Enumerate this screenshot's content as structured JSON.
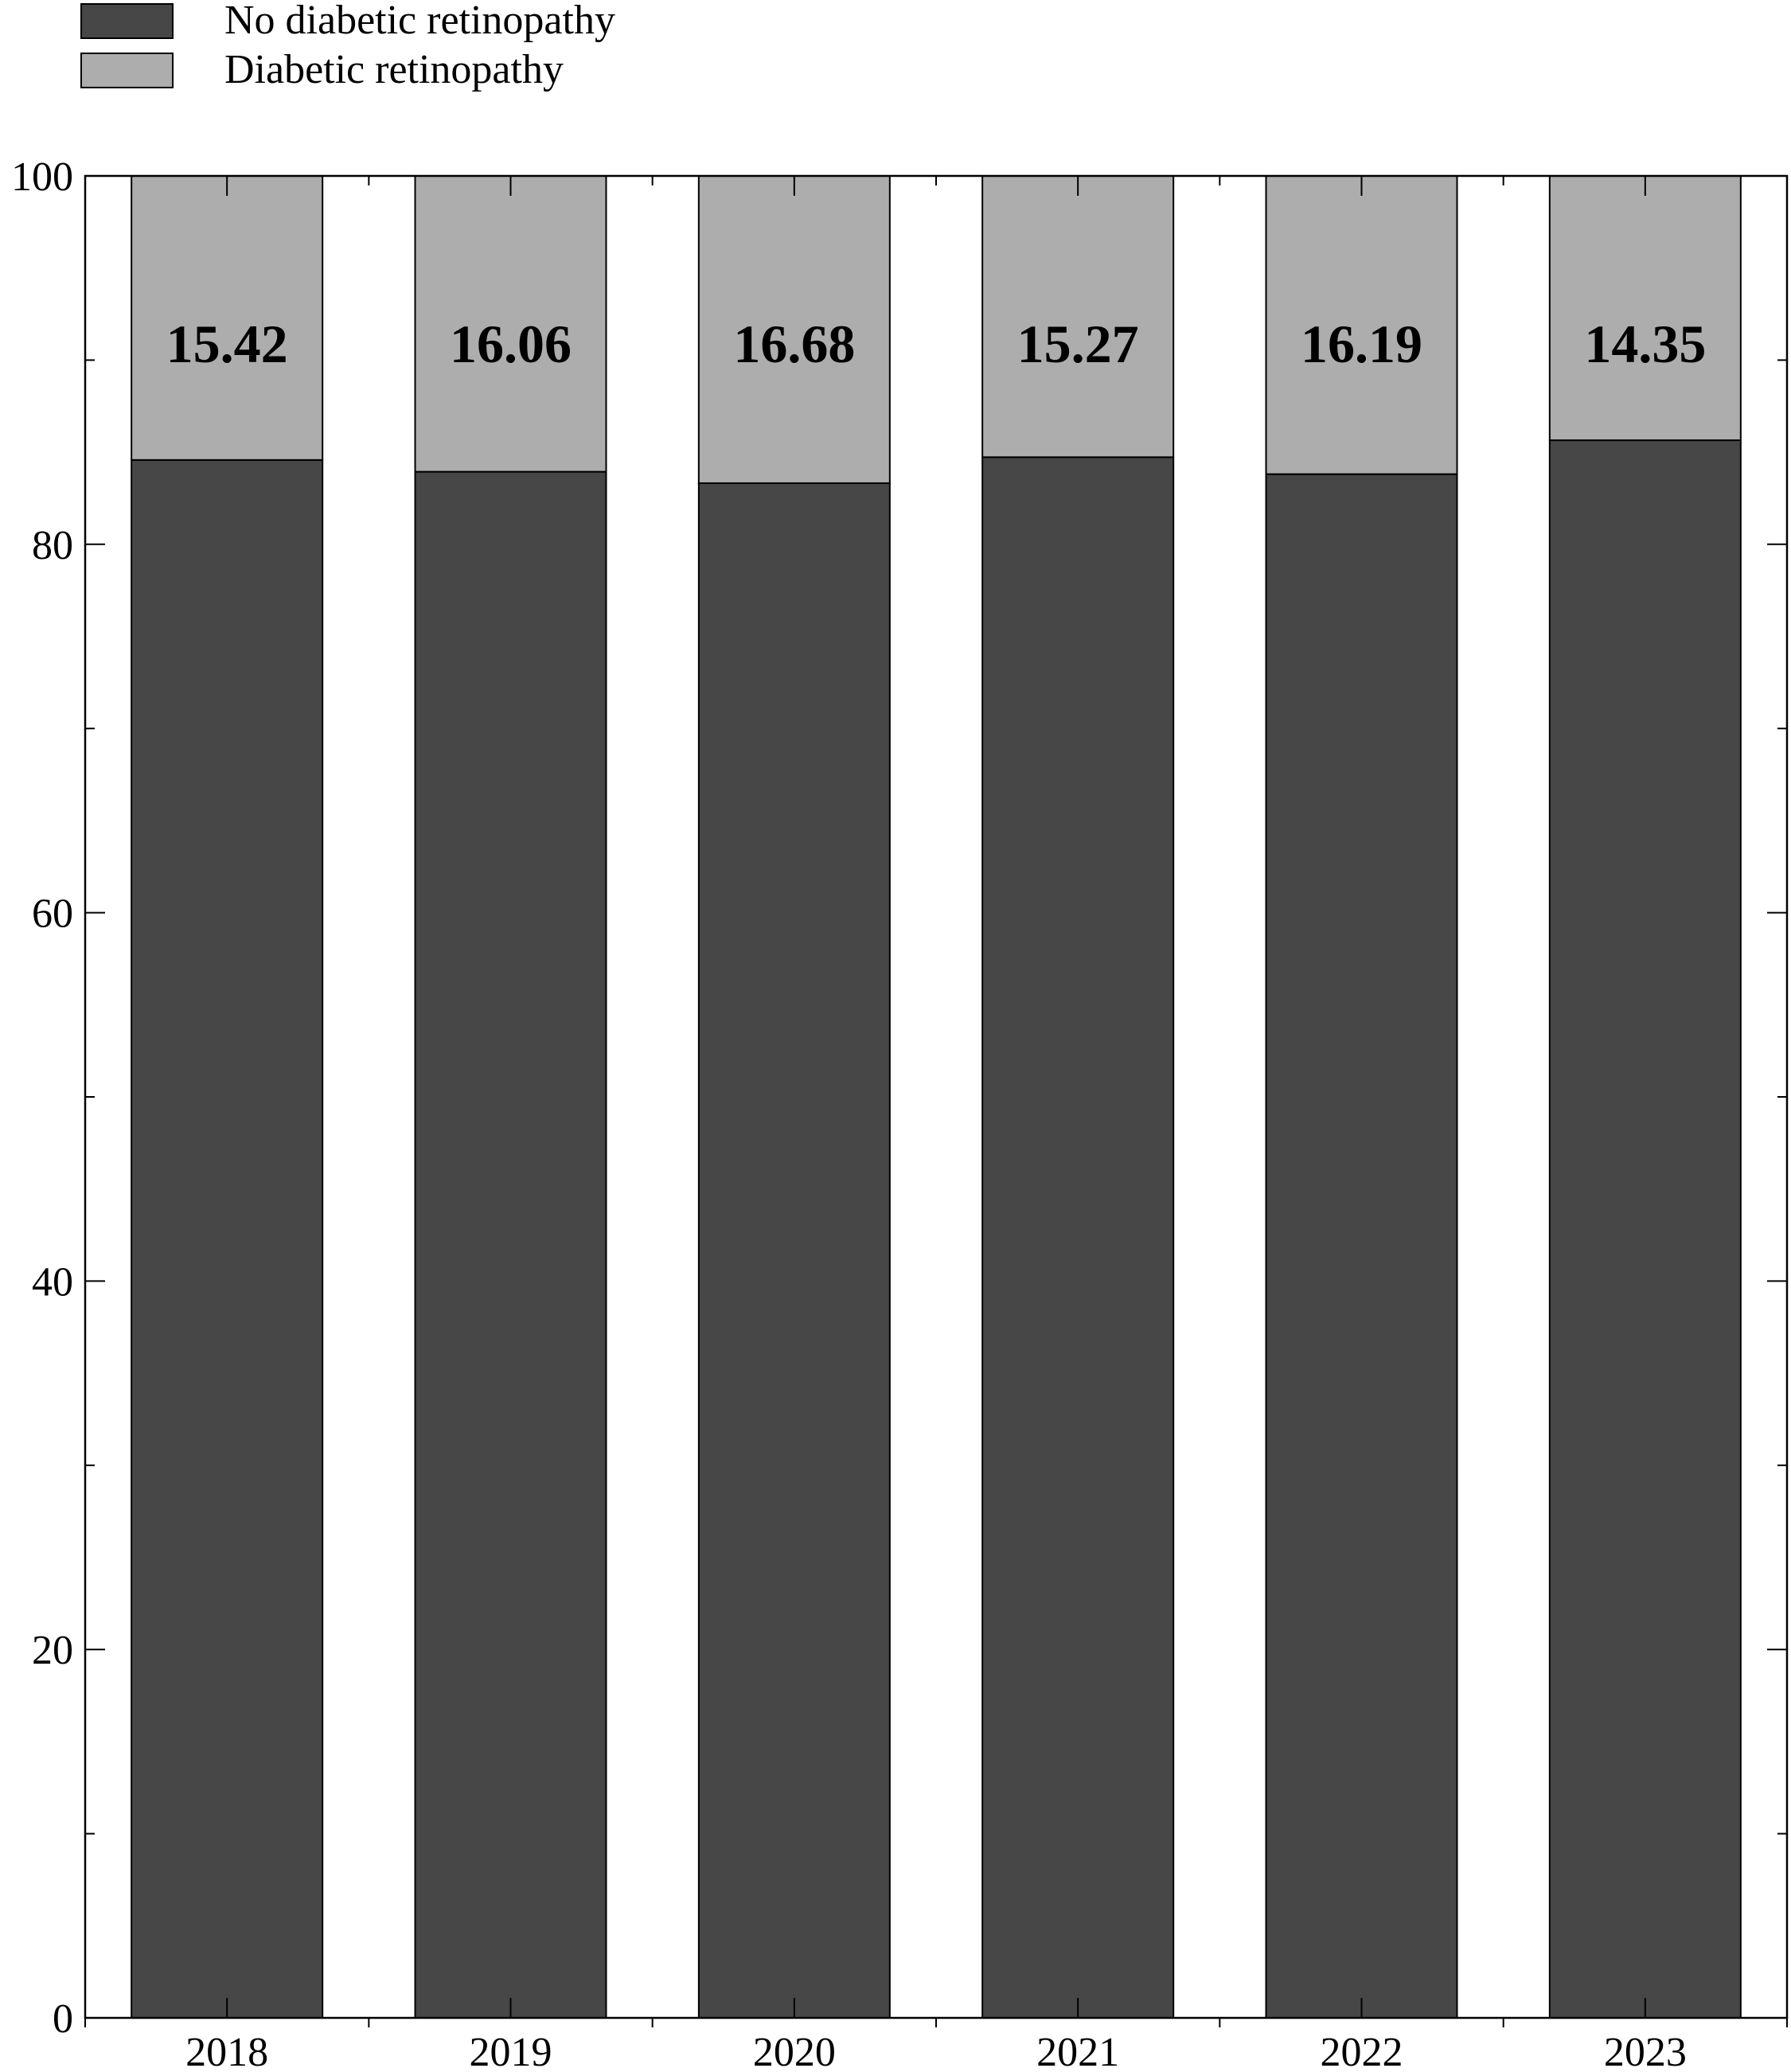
{
  "chart_data": {
    "type": "bar",
    "stacked": true,
    "categories": [
      "2018",
      "2019",
      "2020",
      "2021",
      "2022",
      "2023"
    ],
    "series": [
      {
        "name": "No diabetic retinopathy",
        "color": "#474747",
        "values": [
          84.58,
          83.94,
          83.32,
          84.73,
          83.81,
          85.65
        ]
      },
      {
        "name": "Diabetic retinopathy",
        "color": "#adadad",
        "values": [
          15.42,
          16.06,
          16.68,
          15.27,
          16.19,
          14.35
        ]
      }
    ],
    "data_labels": [
      "15.42",
      "16.06",
      "16.68",
      "15.27",
      "16.19",
      "14.35"
    ],
    "ylim": [
      0,
      100
    ],
    "y_ticks": [
      "0",
      "20",
      "40",
      "60",
      "80",
      "100"
    ],
    "title": "",
    "xlabel": "",
    "ylabel": "",
    "legend_position": "top-left",
    "grid": false
  }
}
